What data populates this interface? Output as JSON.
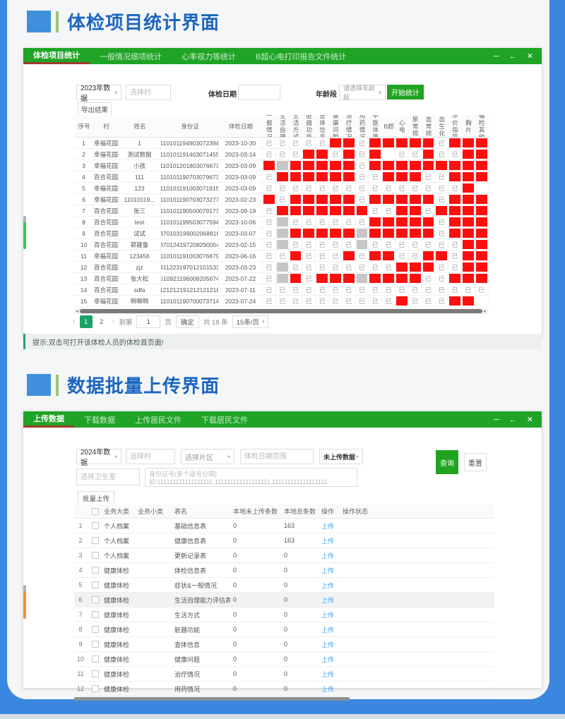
{
  "colors": {
    "titlebar_green": "#1fa426",
    "accent_square_blue": "#3f8fdd",
    "title_blue": "#1b66c0",
    "red_cell": "#fb0f0f",
    "gray_cell": "#c6c6c6",
    "link_blue": "#3ea1f2",
    "active_page_green": "#18a266",
    "frame_blue": "#3b87e0",
    "active_tab_underline": "#9e3b2e"
  },
  "icons": {
    "caret_down": "▾",
    "scroll_left": "◂",
    "scroll_right": "▸",
    "minimize": "─",
    "restore": "←",
    "close": "✕",
    "page_prev": "‹",
    "page_next": "›"
  },
  "sections": {
    "title1": "体检项目统计界面",
    "title2": "数据批量上传界面"
  },
  "panel1": {
    "tabs": [
      "体检项目统计",
      "一般情况细项统计",
      "心率视力等统计",
      "B超心电打印报告文件统计"
    ],
    "active_tab": 0,
    "toolbar": {
      "year_value": "2023年数据",
      "village_placeholder": "选择村",
      "date_label": "体检日期",
      "age_label": "年龄段",
      "age_placeholder": "请选择年龄段",
      "start_button": "开始统计",
      "export_button": "导出结果"
    },
    "table": {
      "fixed_headers": [
        "序号",
        "村",
        "姓名",
        "身份证",
        "体检日期"
      ],
      "status_headers": [
        "一般情况",
        "生活自理",
        "生活方式",
        "脏器功能",
        "查体信息",
        "健康问题",
        "治疗情况",
        "用药情况",
        "中医体质",
        "B超",
        "心电",
        "尿常规",
        "血常规",
        "血生化",
        "评价指导",
        "胸片",
        "辅检其他"
      ],
      "done_glyph": "已",
      "status_legend": {
        "y": "done",
        "r": "missing-red",
        "g": "na-gray",
        "e": "empty"
      },
      "rows": [
        {
          "no": "1",
          "village": "幸福花园",
          "name": "1",
          "id": "110101194903072394",
          "date": "2023-10-30",
          "status": "yyyyyrryrrrrryrrr"
        },
        {
          "no": "2",
          "village": "幸福花园",
          "name": "测试数据",
          "id": "110101191403071455",
          "date": "2023-03-14",
          "status": "yyyrryryreyyryyrr"
        },
        {
          "no": "3",
          "village": "幸福花园",
          "name": "小孩",
          "id": "110101201803076673",
          "date": "2023-03-09",
          "status": "rgrrrrryrrrrrrrrr"
        },
        {
          "no": "4",
          "village": "百合花园",
          "name": "111",
          "id": "110101190703079673",
          "date": "2023-03-09",
          "status": "yrrrrrryyrrryyrrr"
        },
        {
          "no": "5",
          "village": "幸福花园",
          "name": "123",
          "id": "110101191003071915",
          "date": "2023-03-09",
          "status": "yyyyyyyyyyyyyyyre"
        },
        {
          "no": "6",
          "village": "幸福花园",
          "name": "11010119...",
          "id": "110101190703073277",
          "date": "2023-02-23",
          "status": "ryrrrrryrrrrryrrr"
        },
        {
          "no": "7",
          "village": "百合花园",
          "name": "张三",
          "id": "110101190500079177",
          "date": "2023-09-19",
          "status": "yrrrrrrryyrryrrrr"
        },
        {
          "no": "8",
          "village": "百合花园",
          "name": "test",
          "id": "110101199503077594",
          "date": "2023-10-06",
          "status": "ygyyyyyyrrrrryrrr"
        },
        {
          "no": "9",
          "village": "百合花园",
          "name": "试试",
          "id": "370103199002068816",
          "date": "2023-03-07",
          "status": "ygrrrrrgrrrrryrrr"
        },
        {
          "no": "10",
          "village": "百合花园",
          "name": "郭建鲁",
          "id": "370124197208290054",
          "date": "2023-02-15",
          "status": "ygyyyyygyyyyyyyrr"
        },
        {
          "no": "11",
          "village": "幸福花园",
          "name": "123456",
          "id": "110101191003076679",
          "date": "2023-06-16",
          "status": "yyryyyryrryyrryrr"
        },
        {
          "no": "12",
          "village": "百合花园",
          "name": "zjz",
          "id": "411223197012101533",
          "date": "2023-03-23",
          "status": "ygyyyyyyyyrrryyrr"
        },
        {
          "no": "13",
          "village": "百合花园",
          "name": "张大松",
          "id": "510921196008205674",
          "date": "2023-07-22",
          "status": "ygryrrrgrrrryyrrr"
        },
        {
          "no": "14",
          "village": "百合花园",
          "name": "sdfa",
          "id": "121212191212121218",
          "date": "2023-07-11",
          "status": "yyyyyyyyyyyyyyyyy"
        },
        {
          "no": "15",
          "village": "幸福花园",
          "name": "啊啊啊",
          "id": "110101190700073714",
          "date": "2023-07-24",
          "status": "yyyyyyyyyyryyyrre"
        }
      ]
    },
    "pagination": {
      "pages": [
        "1",
        "2"
      ],
      "active_page": 0,
      "jump_label": "到第",
      "jump_value": "1",
      "page_unit": "页",
      "confirm_button": "确定",
      "total_text": "共 18 条",
      "page_size": "15条/页"
    },
    "tip": "提示:双击可打开该体检人员的体检首页面!"
  },
  "panel2": {
    "tabs": [
      "上传数据",
      "下载数据",
      "上传居民文件",
      "下载居民文件"
    ],
    "active_tab": 0,
    "filters": {
      "year_value": "2024年数据",
      "village_placeholder": "选择村",
      "area_placeholder": "选择片区",
      "date_range_placeholder": "体检日期范围",
      "upload_state_value": "未上传数据",
      "clinic_placeholder": "选择卫生室",
      "id_placeholder": "身份证号(多个逗号分隔) 如:111111111111111111,111111111111111111,111111111111111111",
      "query_button": "查询",
      "reset_button": "重置",
      "batch_button": "批量上传"
    },
    "table": {
      "headers": [
        "业务大类",
        "业务小类",
        "表名",
        "本地未上传条数",
        "本地总条数",
        "操作",
        "操作状态"
      ],
      "action_label": "上传",
      "highlighted_row": 6,
      "rows": [
        {
          "no": "1",
          "category": "个人档案",
          "subcategory": "",
          "name": "基础信息表",
          "pending": "0",
          "total": "163"
        },
        {
          "no": "2",
          "category": "个人档案",
          "subcategory": "",
          "name": "健康信息表",
          "pending": "0",
          "total": "163"
        },
        {
          "no": "3",
          "category": "个人档案",
          "subcategory": "",
          "name": "更新记录表",
          "pending": "0",
          "total": "0"
        },
        {
          "no": "4",
          "category": "健康体检",
          "subcategory": "",
          "name": "体检信息表",
          "pending": "0",
          "total": "0"
        },
        {
          "no": "5",
          "category": "健康体检",
          "subcategory": "",
          "name": "症状&一般情况",
          "pending": "0",
          "total": "0"
        },
        {
          "no": "6",
          "category": "健康体检",
          "subcategory": "",
          "name": "生活自理能力评估表",
          "pending": "0",
          "total": "0"
        },
        {
          "no": "7",
          "category": "健康体检",
          "subcategory": "",
          "name": "生活方式",
          "pending": "0",
          "total": "0"
        },
        {
          "no": "8",
          "category": "健康体检",
          "subcategory": "",
          "name": "脏器功能",
          "pending": "0",
          "total": "0"
        },
        {
          "no": "9",
          "category": "健康体检",
          "subcategory": "",
          "name": "查体信息",
          "pending": "0",
          "total": "0"
        },
        {
          "no": "10",
          "category": "健康体检",
          "subcategory": "",
          "name": "健康问题",
          "pending": "0",
          "total": "0"
        },
        {
          "no": "11",
          "category": "健康体检",
          "subcategory": "",
          "name": "治疗情况",
          "pending": "0",
          "total": "0"
        },
        {
          "no": "12",
          "category": "健康体检",
          "subcategory": "",
          "name": "用药情况",
          "pending": "0",
          "total": "0"
        }
      ]
    }
  }
}
